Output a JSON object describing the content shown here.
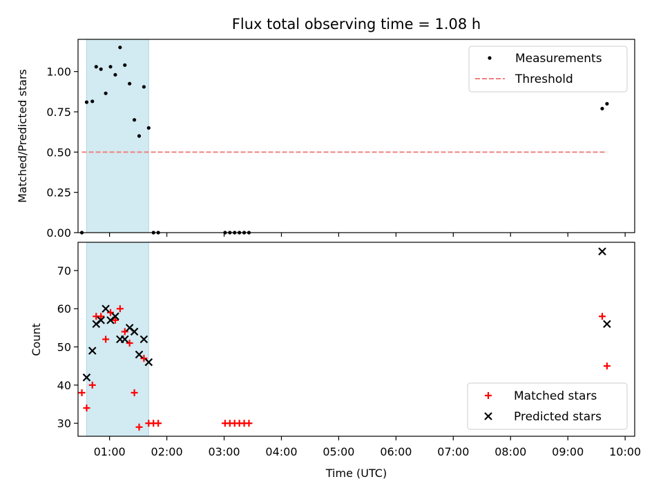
{
  "figure": {
    "title": "Flux total observing time = 1.08 h",
    "xlabel": "Time (UTC)"
  },
  "colors": {
    "span": "#add8e6",
    "measurements": "#000000",
    "threshold": "#f08080",
    "matched": "#ff0000",
    "predicted": "#000000"
  },
  "chart_data": [
    {
      "type": "scatter",
      "panel": "top",
      "ylabel": "Matched/Predicted stars",
      "xlim": [
        "00:27",
        "10:10"
      ],
      "ylim": [
        0,
        1.2
      ],
      "yticks": [
        0.0,
        0.25,
        0.5,
        0.75,
        1.0
      ],
      "ytick_labels": [
        "0.00",
        "0.25",
        "0.50",
        "0.75",
        "1.00"
      ],
      "highlight_span": [
        "00:36",
        "01:41"
      ],
      "legend_position": "upper right",
      "series": [
        {
          "name": "Measurements",
          "marker": "dot",
          "points": [
            [
              "00:31",
              0.0
            ],
            [
              "00:36",
              0.81
            ],
            [
              "00:42",
              0.815
            ],
            [
              "00:46",
              1.03
            ],
            [
              "00:51",
              1.015
            ],
            [
              "00:56",
              0.865
            ],
            [
              "01:01",
              1.03
            ],
            [
              "01:06",
              0.98
            ],
            [
              "01:11",
              1.15
            ],
            [
              "01:16",
              1.04
            ],
            [
              "01:21",
              0.925
            ],
            [
              "01:26",
              0.7
            ],
            [
              "01:31",
              0.6
            ],
            [
              "01:36",
              0.905
            ],
            [
              "01:41",
              0.65
            ],
            [
              "01:46",
              0.0
            ],
            [
              "01:51",
              0.0
            ],
            [
              "03:01",
              0.0
            ],
            [
              "03:06",
              0.0
            ],
            [
              "03:11",
              0.0
            ],
            [
              "03:16",
              0.0
            ],
            [
              "03:21",
              0.0
            ],
            [
              "03:26",
              0.0
            ],
            [
              "09:36",
              0.77
            ],
            [
              "09:41",
              0.8
            ]
          ]
        },
        {
          "name": "Threshold",
          "style": "dashed-line",
          "points": [
            [
              "00:31",
              0.5
            ],
            [
              "09:41",
              0.5
            ]
          ]
        }
      ]
    },
    {
      "type": "scatter",
      "panel": "bottom",
      "ylabel": "Count",
      "xlabel": "Time (UTC)",
      "xlim": [
        "00:27",
        "10:10"
      ],
      "ylim": [
        26.6,
        77.4
      ],
      "yticks": [
        30,
        40,
        50,
        60,
        70
      ],
      "ytick_labels": [
        "30",
        "40",
        "50",
        "60",
        "70"
      ],
      "xticks": [
        "01:00",
        "02:00",
        "03:00",
        "04:00",
        "05:00",
        "06:00",
        "07:00",
        "08:00",
        "09:00",
        "10:00"
      ],
      "highlight_span": [
        "00:36",
        "01:41"
      ],
      "legend_position": "lower right",
      "series": [
        {
          "name": "Matched stars",
          "marker": "plus",
          "points": [
            [
              "00:31",
              38
            ],
            [
              "00:36",
              34
            ],
            [
              "00:42",
              40
            ],
            [
              "00:46",
              58
            ],
            [
              "00:51",
              58
            ],
            [
              "00:56",
              52
            ],
            [
              "01:01",
              59
            ],
            [
              "01:06",
              57
            ],
            [
              "01:11",
              60
            ],
            [
              "01:16",
              54
            ],
            [
              "01:21",
              51
            ],
            [
              "01:26",
              38
            ],
            [
              "01:31",
              29
            ],
            [
              "01:36",
              47
            ],
            [
              "01:41",
              30
            ],
            [
              "01:46",
              30
            ],
            [
              "01:51",
              30
            ],
            [
              "03:01",
              30
            ],
            [
              "03:06",
              30
            ],
            [
              "03:11",
              30
            ],
            [
              "03:16",
              30
            ],
            [
              "03:21",
              30
            ],
            [
              "03:26",
              30
            ],
            [
              "09:36",
              58
            ],
            [
              "09:41",
              45
            ]
          ]
        },
        {
          "name": "Predicted stars",
          "marker": "x",
          "points": [
            [
              "00:36",
              42
            ],
            [
              "00:42",
              49
            ],
            [
              "00:46",
              56
            ],
            [
              "00:51",
              57
            ],
            [
              "00:56",
              60
            ],
            [
              "01:01",
              57
            ],
            [
              "01:06",
              58
            ],
            [
              "01:11",
              52
            ],
            [
              "01:16",
              52
            ],
            [
              "01:21",
              55
            ],
            [
              "01:26",
              54
            ],
            [
              "01:31",
              48
            ],
            [
              "01:36",
              52
            ],
            [
              "01:41",
              46
            ],
            [
              "09:36",
              75
            ],
            [
              "09:41",
              56
            ]
          ]
        }
      ]
    }
  ]
}
